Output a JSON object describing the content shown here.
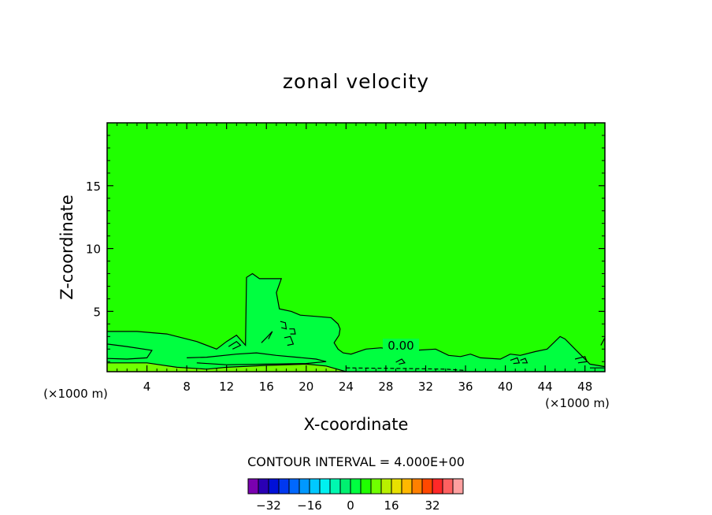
{
  "chart_data": {
    "type": "contour",
    "title": "zonal velocity",
    "xlabel": "X-coordinate",
    "ylabel": "Z-coordinate",
    "x_unit_label": "(×1000 m)",
    "z_unit_label": "(×1000 m)",
    "xlim": [
      0,
      50
    ],
    "ylim": [
      0.2,
      20
    ],
    "x_ticks": [
      4,
      8,
      12,
      16,
      20,
      24,
      28,
      32,
      36,
      40,
      44,
      48
    ],
    "y_ticks": [
      5,
      10,
      15
    ],
    "contour_label": "0.00",
    "contour_interval_text": "CONTOUR INTERVAL = 4.000E+00",
    "contour_interval": 4,
    "colorbar": {
      "colors": [
        "#7a00b0",
        "#2a00b4",
        "#0010d8",
        "#0038f0",
        "#0068ff",
        "#0098ff",
        "#00c8ff",
        "#00f0f0",
        "#00f8b0",
        "#00f070",
        "#00ff40",
        "#20ff00",
        "#70ff00",
        "#b8f000",
        "#e8e000",
        "#ffb800",
        "#ff8000",
        "#ff4800",
        "#ff2828",
        "#ff6060",
        "#ffa0a0"
      ],
      "ticks": [
        -32,
        -16,
        0,
        16,
        32
      ]
    },
    "field_colors": {
      "background": "#20ff00",
      "positive": "#00ff40",
      "band": "#70ff00"
    },
    "regions": [
      {
        "kind": "positive",
        "points": [
          [
            0,
            3.4
          ],
          [
            3,
            3.4
          ],
          [
            6,
            3.2
          ],
          [
            9,
            2.6
          ],
          [
            11,
            2
          ],
          [
            12,
            2.6
          ],
          [
            13,
            3.1
          ],
          [
            13.9,
            2.3
          ],
          [
            14,
            7.7
          ],
          [
            14.6,
            8
          ],
          [
            15.3,
            7.6
          ],
          [
            17.5,
            7.6
          ],
          [
            17,
            6.5
          ],
          [
            17.3,
            5.2
          ],
          [
            18.5,
            5
          ],
          [
            19.4,
            4.7
          ],
          [
            21,
            4.6
          ],
          [
            22.5,
            4.5
          ],
          [
            23.2,
            4
          ],
          [
            23.4,
            3.6
          ],
          [
            23.3,
            3.1
          ],
          [
            22.8,
            2.5
          ],
          [
            23.2,
            2
          ],
          [
            23.7,
            1.7
          ],
          [
            24.5,
            1.6
          ],
          [
            26,
            2
          ],
          [
            27.5,
            2.1
          ],
          [
            29,
            1.9
          ],
          [
            31,
            1.9
          ],
          [
            33,
            2
          ],
          [
            34.3,
            1.5
          ],
          [
            35.5,
            1.4
          ],
          [
            36.5,
            1.6
          ],
          [
            37.5,
            1.3
          ],
          [
            39.5,
            1.2
          ],
          [
            40.5,
            1.6
          ],
          [
            41.5,
            1.5
          ],
          [
            43,
            1.8
          ],
          [
            44.2,
            2
          ],
          [
            45.5,
            3
          ],
          [
            46,
            2.8
          ],
          [
            47,
            2
          ],
          [
            48.5,
            0.8
          ],
          [
            50,
            0.6
          ],
          [
            50,
            0.2
          ],
          [
            0,
            0.2
          ]
        ]
      },
      {
        "kind": "band",
        "points": [
          [
            0,
            0.9
          ],
          [
            4,
            0.9
          ],
          [
            7,
            0.55
          ],
          [
            10,
            0.4
          ],
          [
            12,
            0.55
          ],
          [
            16,
            0.7
          ],
          [
            20,
            0.8
          ],
          [
            22,
            0.65
          ],
          [
            24,
            0.2
          ],
          [
            0,
            0.2
          ]
        ]
      }
    ],
    "contours": [
      {
        "dashed": false,
        "points": [
          [
            0,
            3.4
          ],
          [
            3,
            3.4
          ],
          [
            6,
            3.2
          ],
          [
            9,
            2.6
          ],
          [
            11,
            2
          ],
          [
            12,
            2.6
          ],
          [
            13,
            3.1
          ],
          [
            13.9,
            2.3
          ],
          [
            14,
            7.7
          ],
          [
            14.6,
            8
          ],
          [
            15.3,
            7.6
          ],
          [
            17.5,
            7.6
          ],
          [
            17,
            6.5
          ],
          [
            17.3,
            5.2
          ],
          [
            18.5,
            5
          ],
          [
            19.4,
            4.7
          ],
          [
            21,
            4.6
          ],
          [
            22.5,
            4.5
          ],
          [
            23.2,
            4
          ],
          [
            23.4,
            3.6
          ],
          [
            23.3,
            3.1
          ],
          [
            22.8,
            2.5
          ],
          [
            23.2,
            2
          ],
          [
            23.7,
            1.7
          ],
          [
            24.5,
            1.6
          ],
          [
            26,
            2
          ],
          [
            27.5,
            2.1
          ],
          [
            29,
            1.9
          ],
          [
            31,
            1.9
          ],
          [
            33,
            2
          ],
          [
            34.3,
            1.5
          ],
          [
            35.5,
            1.4
          ],
          [
            36.5,
            1.6
          ],
          [
            37.5,
            1.3
          ],
          [
            39.5,
            1.2
          ],
          [
            40.5,
            1.6
          ],
          [
            41.5,
            1.5
          ],
          [
            43,
            1.8
          ],
          [
            44.2,
            2
          ],
          [
            45.5,
            3
          ],
          [
            46,
            2.8
          ],
          [
            47,
            2
          ],
          [
            48.5,
            0.8
          ],
          [
            50,
            0.6
          ]
        ]
      },
      {
        "dashed": false,
        "points": [
          [
            0,
            2.4
          ],
          [
            2,
            2.2
          ],
          [
            4.5,
            1.9
          ],
          [
            4,
            1.3
          ],
          [
            2,
            1.2
          ],
          [
            0,
            1.25
          ]
        ]
      },
      {
        "dashed": false,
        "points": [
          [
            8,
            1.3
          ],
          [
            10,
            1.35
          ],
          [
            13,
            1.6
          ],
          [
            15,
            1.7
          ],
          [
            17,
            1.5
          ],
          [
            19,
            1.35
          ],
          [
            21,
            1.2
          ],
          [
            22,
            1.0
          ],
          [
            20,
            0.85
          ],
          [
            16,
            0.8
          ],
          [
            12,
            0.75
          ],
          [
            9,
            0.9
          ]
        ]
      },
      {
        "dashed": false,
        "points": [
          [
            0,
            0.9
          ],
          [
            4,
            0.9
          ],
          [
            7,
            0.55
          ],
          [
            10,
            0.4
          ],
          [
            12,
            0.55
          ],
          [
            16,
            0.7
          ],
          [
            20,
            0.8
          ],
          [
            22,
            0.65
          ],
          [
            24,
            0.2
          ]
        ]
      },
      {
        "dashed": false,
        "points": [
          [
            12.2,
            2.2
          ],
          [
            13,
            2.6
          ],
          [
            13.4,
            2.3
          ],
          [
            12.6,
            2
          ]
        ]
      },
      {
        "dashed": false,
        "points": [
          [
            15.5,
            2.5
          ],
          [
            16,
            2.9
          ],
          [
            16.6,
            3.4
          ],
          [
            16.2,
            2.8
          ]
        ]
      },
      {
        "dashed": false,
        "points": [
          [
            17.4,
            4.2
          ],
          [
            17.9,
            4.1
          ],
          [
            18,
            3.6
          ],
          [
            17.5,
            3.7
          ]
        ]
      },
      {
        "dashed": false,
        "points": [
          [
            17.8,
            2.9
          ],
          [
            18.4,
            3.0
          ],
          [
            18.7,
            2.4
          ],
          [
            18.1,
            2.3
          ]
        ]
      },
      {
        "dashed": false,
        "points": [
          [
            18.3,
            3.6
          ],
          [
            18.8,
            3.6
          ],
          [
            18.9,
            3.2
          ],
          [
            18.4,
            3.2
          ]
        ]
      },
      {
        "dashed": false,
        "points": [
          [
            29,
            0.95
          ],
          [
            29.6,
            1.2
          ],
          [
            29.9,
            0.9
          ],
          [
            29.3,
            0.8
          ]
        ]
      },
      {
        "dashed": false,
        "points": [
          [
            40.5,
            1.1
          ],
          [
            41.2,
            1.3
          ],
          [
            41.4,
            0.9
          ],
          [
            40.8,
            0.85
          ]
        ]
      },
      {
        "dashed": false,
        "points": [
          [
            41.5,
            1.1
          ],
          [
            42,
            1.25
          ],
          [
            42.2,
            0.9
          ],
          [
            41.7,
            0.9
          ]
        ]
      },
      {
        "dashed": false,
        "points": [
          [
            47,
            1.2
          ],
          [
            48,
            1.4
          ],
          [
            48.2,
            1.0
          ],
          [
            47.3,
            0.9
          ]
        ]
      },
      {
        "dashed": false,
        "points": [
          [
            49.6,
            2.3
          ],
          [
            50,
            2.9
          ],
          [
            50,
            2.2
          ]
        ]
      },
      {
        "dashed": false,
        "points": [
          [
            48.5,
            0.5
          ],
          [
            50,
            0.5
          ]
        ]
      },
      {
        "dashed": true,
        "points": [
          [
            24,
            0.5
          ],
          [
            30,
            0.45
          ],
          [
            34,
            0.4
          ],
          [
            36,
            0.3
          ]
        ]
      }
    ]
  }
}
